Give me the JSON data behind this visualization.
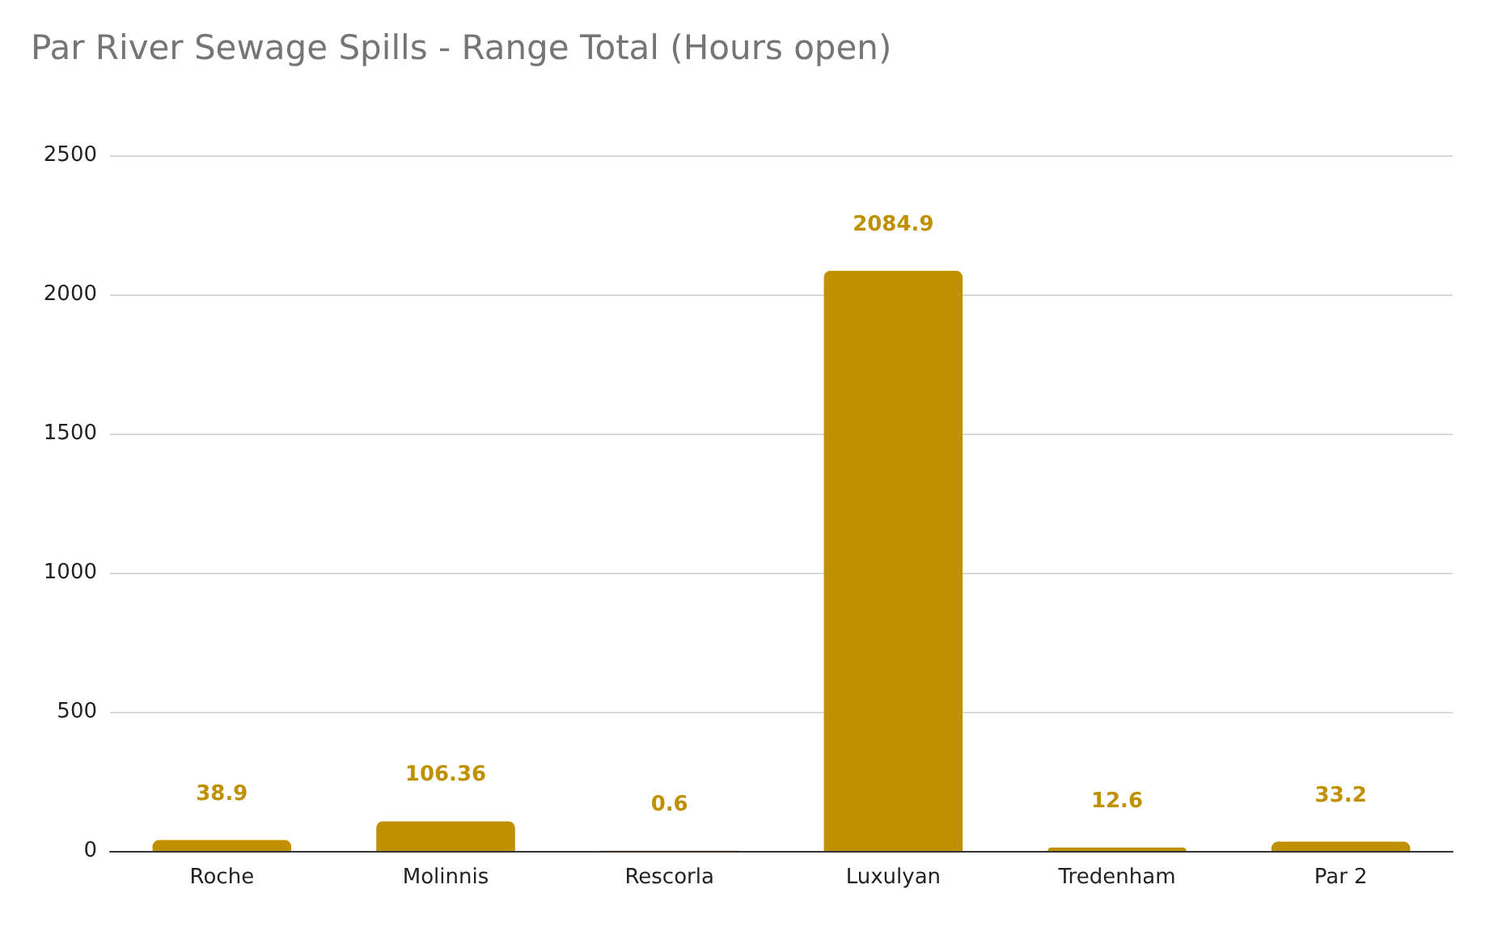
{
  "chart_data": {
    "type": "bar",
    "title": "Par River Sewage Spills - Range Total (Hours open)",
    "categories": [
      "Roche",
      "Molinnis",
      "Rescorla",
      "Luxulyan",
      "Tredenham",
      "Par 2"
    ],
    "values": [
      38.9,
      106.36,
      0.6,
      2084.9,
      12.6,
      33.2
    ],
    "color": "#bf9000",
    "ylim": [
      0,
      2500
    ],
    "yticks": [
      0,
      500,
      1000,
      1500,
      2000,
      2500
    ],
    "grid": "y",
    "data_labels": true
  }
}
